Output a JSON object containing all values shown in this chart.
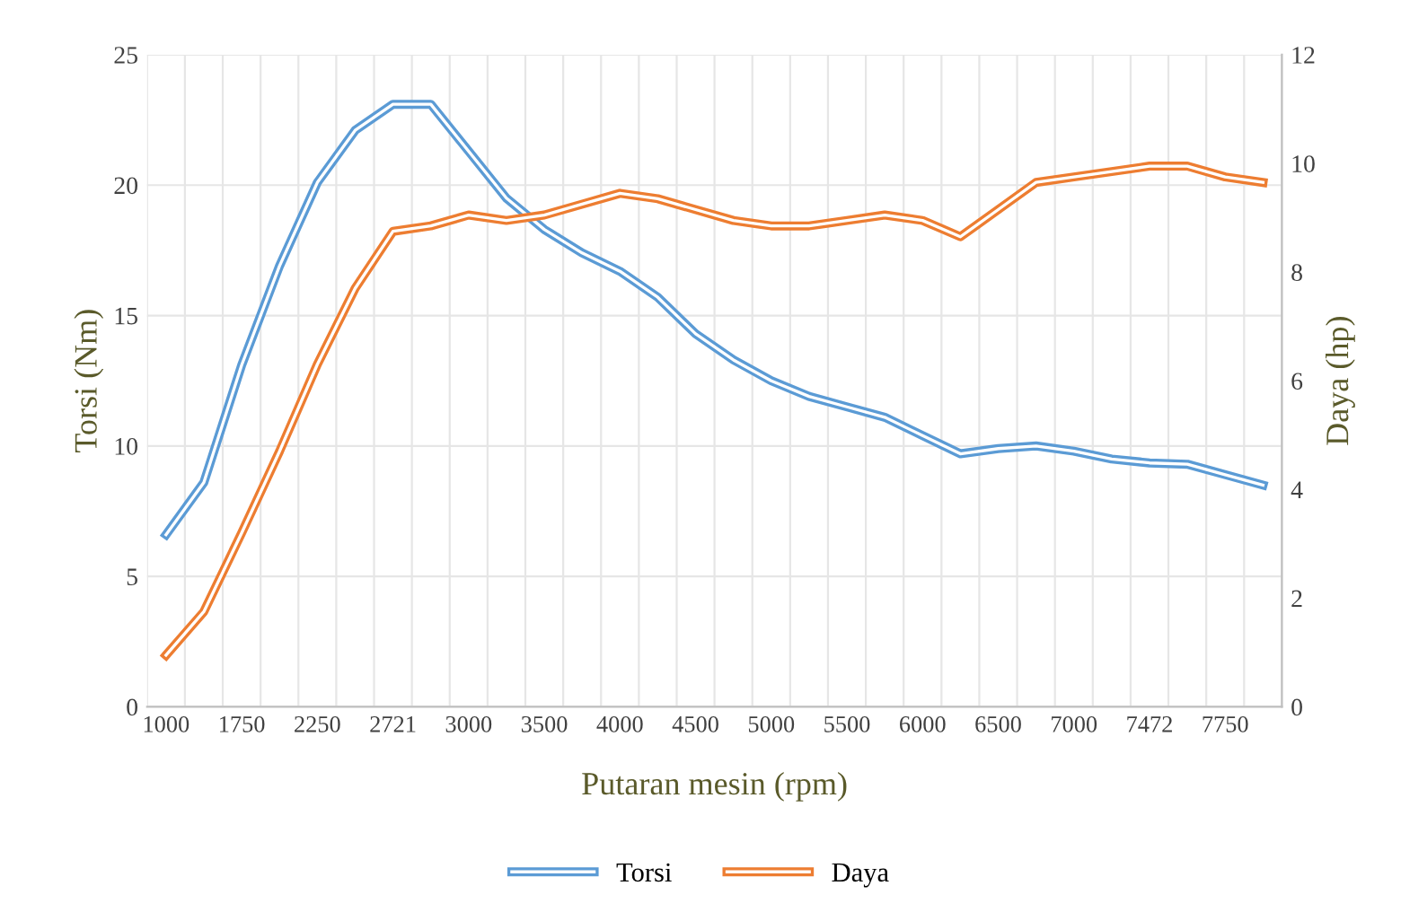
{
  "chart_data": {
    "type": "line",
    "categories": [
      "1000",
      null,
      "1750",
      null,
      "2250",
      null,
      "2721",
      null,
      "3000",
      null,
      "3500",
      null,
      "4000",
      null,
      "4500",
      null,
      "5000",
      null,
      "5500",
      null,
      "6000",
      null,
      "6500",
      null,
      "7000",
      null,
      "7472",
      null,
      "7750",
      null
    ],
    "series": [
      {
        "name": "Torsi",
        "color": "#5b9bd5",
        "values": [
          6.6,
          8.6,
          13.1,
          16.9,
          20.1,
          22.1,
          23.1,
          23.1,
          21.3,
          19.5,
          18.3,
          17.4,
          16.7,
          15.7,
          14.3,
          13.3,
          12.5,
          11.9,
          11.5,
          11.1,
          10.4,
          9.7,
          9.9,
          10.0,
          9.8,
          9.5,
          9.35,
          9.3,
          8.9,
          8.5
        ]
      },
      {
        "name": "Daya",
        "color": "#ed7d31",
        "axis": "y2",
        "values": [
          0.95,
          1.75,
          3.2,
          4.7,
          6.3,
          7.7,
          8.75,
          8.85,
          9.05,
          8.95,
          9.05,
          9.25,
          9.45,
          9.35,
          9.15,
          8.95,
          8.85,
          8.85,
          8.95,
          9.05,
          8.95,
          8.65,
          9.15,
          9.65,
          9.75,
          9.85,
          9.95,
          9.95,
          9.75,
          9.65
        ]
      }
    ],
    "xlabel": "Putaran mesin (rpm)",
    "ylabel": "Torsi (Nm)",
    "y2label": "Daya (hp)",
    "ylim": [
      0,
      25
    ],
    "yticks": [
      0,
      5,
      10,
      15,
      20,
      25
    ],
    "y2lim": [
      0,
      12
    ],
    "y2ticks": [
      0,
      2,
      4,
      6,
      8,
      10,
      12
    ],
    "grid": true,
    "legend": "bottom",
    "marker": "none",
    "line_style": "solid"
  }
}
